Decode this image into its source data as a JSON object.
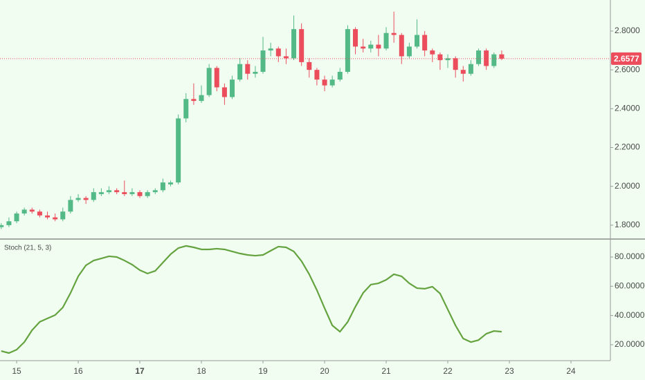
{
  "chart_data": [
    {
      "type": "candlestick",
      "x": [
        14.75,
        14.875,
        15,
        15.125,
        15.25,
        15.375,
        15.5,
        15.625,
        15.75,
        15.875,
        16,
        16.125,
        16.25,
        16.375,
        16.5,
        16.625,
        16.75,
        16.875,
        17,
        17.125,
        17.25,
        17.375,
        17.5,
        17.625,
        17.75,
        17.875,
        18,
        18.125,
        18.25,
        18.375,
        18.5,
        18.625,
        18.75,
        18.875,
        19,
        19.125,
        19.25,
        19.375,
        19.5,
        19.625,
        19.75,
        19.875,
        20,
        20.125,
        20.25,
        20.375,
        20.5,
        20.625,
        20.75,
        20.875,
        21,
        21.125,
        21.25,
        21.375,
        21.5,
        21.625,
        21.75,
        21.875,
        22,
        22.125,
        22.25,
        22.375,
        22.5,
        22.625,
        22.75,
        22.875
      ],
      "open": [
        1.79,
        1.8,
        1.82,
        1.86,
        1.88,
        1.87,
        1.85,
        1.84,
        1.83,
        1.87,
        1.93,
        1.94,
        1.93,
        1.96,
        1.97,
        1.98,
        1.97,
        1.96,
        1.97,
        1.95,
        1.97,
        1.98,
        2.01,
        2.02,
        2.35,
        2.45,
        2.44,
        2.47,
        2.61,
        2.51,
        2.46,
        2.55,
        2.63,
        2.58,
        2.59,
        2.7,
        2.71,
        2.67,
        2.66,
        2.81,
        2.64,
        2.6,
        2.55,
        2.52,
        2.55,
        2.59,
        2.81,
        2.72,
        2.71,
        2.73,
        2.71,
        2.79,
        2.78,
        2.67,
        2.72,
        2.78,
        2.7,
        2.68,
        2.65,
        2.66,
        2.6,
        2.58,
        2.63,
        2.7,
        2.62,
        2.68
      ],
      "high": [
        1.81,
        1.84,
        1.87,
        1.89,
        1.89,
        1.88,
        1.87,
        1.86,
        1.89,
        1.95,
        1.96,
        1.95,
        1.99,
        1.99,
        2.0,
        1.99,
        2.03,
        1.99,
        1.98,
        1.98,
        1.99,
        2.04,
        2.03,
        2.37,
        2.48,
        2.53,
        2.52,
        2.63,
        2.62,
        2.53,
        2.57,
        2.66,
        2.65,
        2.62,
        2.77,
        2.74,
        2.72,
        2.71,
        2.88,
        2.84,
        2.66,
        2.61,
        2.57,
        2.57,
        2.61,
        2.83,
        2.82,
        2.76,
        2.75,
        2.78,
        2.82,
        2.9,
        2.79,
        2.74,
        2.86,
        2.8,
        2.71,
        2.69,
        2.68,
        2.67,
        2.62,
        2.65,
        2.71,
        2.71,
        2.69,
        2.7
      ],
      "low": [
        1.78,
        1.79,
        1.81,
        1.85,
        1.86,
        1.84,
        1.83,
        1.82,
        1.82,
        1.86,
        1.92,
        1.91,
        1.92,
        1.95,
        1.96,
        1.96,
        1.95,
        1.95,
        1.94,
        1.94,
        1.96,
        1.97,
        2.0,
        2.01,
        2.33,
        2.42,
        2.43,
        2.46,
        2.49,
        2.42,
        2.45,
        2.54,
        2.55,
        2.56,
        2.58,
        2.67,
        2.64,
        2.63,
        2.65,
        2.62,
        2.56,
        2.52,
        2.49,
        2.51,
        2.54,
        2.58,
        2.68,
        2.69,
        2.69,
        2.67,
        2.7,
        2.74,
        2.63,
        2.66,
        2.71,
        2.67,
        2.64,
        2.6,
        2.61,
        2.56,
        2.54,
        2.57,
        2.62,
        2.6,
        2.61,
        2.65
      ],
      "close": [
        1.8,
        1.82,
        1.86,
        1.88,
        1.87,
        1.85,
        1.84,
        1.83,
        1.87,
        1.93,
        1.94,
        1.93,
        1.97,
        1.97,
        1.98,
        1.97,
        1.96,
        1.97,
        1.95,
        1.97,
        1.98,
        2.02,
        2.02,
        2.35,
        2.45,
        2.44,
        2.47,
        2.61,
        2.51,
        2.46,
        2.55,
        2.63,
        2.58,
        2.59,
        2.7,
        2.71,
        2.67,
        2.66,
        2.81,
        2.64,
        2.6,
        2.55,
        2.52,
        2.55,
        2.59,
        2.81,
        2.72,
        2.71,
        2.73,
        2.71,
        2.79,
        2.78,
        2.67,
        2.72,
        2.78,
        2.7,
        2.68,
        2.65,
        2.66,
        2.6,
        2.58,
        2.63,
        2.7,
        2.62,
        2.68,
        2.6577
      ],
      "up_color": "#53b987",
      "down_color": "#eb4d5c",
      "last_price": 2.6577,
      "last_price_color": "#eb4d5c",
      "ylim": [
        1.732,
        2.96
      ],
      "yticks": [
        {
          "value": 1.8,
          "label": "1.8000"
        },
        {
          "value": 2.0,
          "label": "2.0000"
        },
        {
          "value": 2.2,
          "label": "2.2000"
        },
        {
          "value": 2.4,
          "label": "2.4000"
        },
        {
          "value": 2.6,
          "label": "2.6000"
        },
        {
          "value": 2.8,
          "label": "2.8000"
        }
      ],
      "xlim": [
        14.73,
        24.64
      ],
      "xticks": [
        15,
        16,
        17,
        18,
        19,
        20,
        21,
        22,
        23,
        24
      ],
      "bold_xticks": [
        17
      ]
    },
    {
      "type": "line",
      "title": "Stoch (21, 5, 3)",
      "color": "#64a23e",
      "values": [
        15.7,
        14.3,
        16.6,
        21.8,
        29.9,
        35.6,
        38,
        40.3,
        45.5,
        55.4,
        66.8,
        74.3,
        77.6,
        79,
        80.5,
        80,
        77.6,
        74.8,
        71,
        68.7,
        70.5,
        76.2,
        81.9,
        86.1,
        87.6,
        86.6,
        85.2,
        85.2,
        85.7,
        85.2,
        83.8,
        82.4,
        81.4,
        80.9,
        81.4,
        84.3,
        87.1,
        86.6,
        83.8,
        77.2,
        68.2,
        57.3,
        45,
        33.2,
        28.9,
        35.6,
        46,
        55.4,
        61.1,
        62,
        64.4,
        68.2,
        66.8,
        62,
        58.7,
        58.3,
        59.7,
        55,
        44.1,
        33.2,
        24.2,
        21.8,
        23.2,
        27.5,
        29.4,
        28.9
      ],
      "ylim": [
        9.1,
        91.8
      ],
      "yticks": [
        {
          "value": 20,
          "label": "20.0000"
        },
        {
          "value": 40,
          "label": "40.0000"
        },
        {
          "value": 60,
          "label": "60.0000"
        },
        {
          "value": 80,
          "label": "80.0000"
        }
      ]
    }
  ]
}
